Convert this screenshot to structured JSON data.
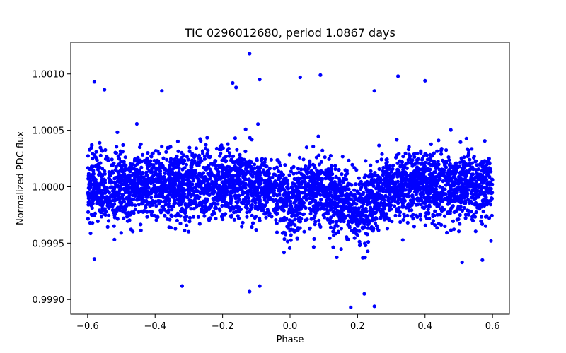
{
  "chart_data": {
    "type": "scatter",
    "title": "TIC 0296012680, period 1.0867 days",
    "xlabel": "Phase",
    "ylabel": "Normalized PDC flux",
    "xlim": [
      -0.65,
      0.65
    ],
    "ylim": [
      0.99887,
      1.00128
    ],
    "xticks": [
      -0.6,
      -0.4,
      -0.2,
      0.0,
      0.2,
      0.4,
      0.6
    ],
    "xtick_labels": [
      "−0.6",
      "−0.4",
      "−0.2",
      "0.0",
      "0.2",
      "0.4",
      "0.6"
    ],
    "yticks": [
      0.999,
      0.9995,
      1.0,
      1.0005,
      1.001
    ],
    "ytick_labels": [
      "0.9990",
      "0.9995",
      "1.0000",
      "1.0005",
      "1.0010"
    ],
    "marker_color": "#0000ff",
    "series": [
      {
        "name": "PDC flux",
        "x_range": [
          -0.6,
          0.6
        ],
        "n_points": 4200,
        "baseline": 1.0,
        "scatter_sigma": 0.00015,
        "dips": [
          {
            "center": 0.0,
            "width": 0.03,
            "depth": 0.00015
          },
          {
            "center": 0.2,
            "width": 0.05,
            "depth": 0.0002
          }
        ],
        "outliers": [
          {
            "x": -0.58,
            "y": 1.00093
          },
          {
            "x": -0.55,
            "y": 1.00086
          },
          {
            "x": -0.38,
            "y": 1.00085
          },
          {
            "x": -0.17,
            "y": 1.00092
          },
          {
            "x": -0.16,
            "y": 1.00088
          },
          {
            "x": -0.12,
            "y": 1.00118
          },
          {
            "x": -0.09,
            "y": 1.00095
          },
          {
            "x": 0.03,
            "y": 1.00097
          },
          {
            "x": 0.09,
            "y": 1.00099
          },
          {
            "x": 0.25,
            "y": 1.00085
          },
          {
            "x": 0.32,
            "y": 1.00098
          },
          {
            "x": 0.4,
            "y": 1.00094
          },
          {
            "x": -0.32,
            "y": 0.99912
          },
          {
            "x": -0.12,
            "y": 0.99907
          },
          {
            "x": -0.09,
            "y": 0.99912
          },
          {
            "x": 0.18,
            "y": 0.99893
          },
          {
            "x": 0.22,
            "y": 0.99905
          },
          {
            "x": 0.25,
            "y": 0.99894
          },
          {
            "x": -0.58,
            "y": 0.99936
          },
          {
            "x": 0.57,
            "y": 0.99935
          },
          {
            "x": 0.51,
            "y": 0.99933
          }
        ]
      }
    ]
  }
}
